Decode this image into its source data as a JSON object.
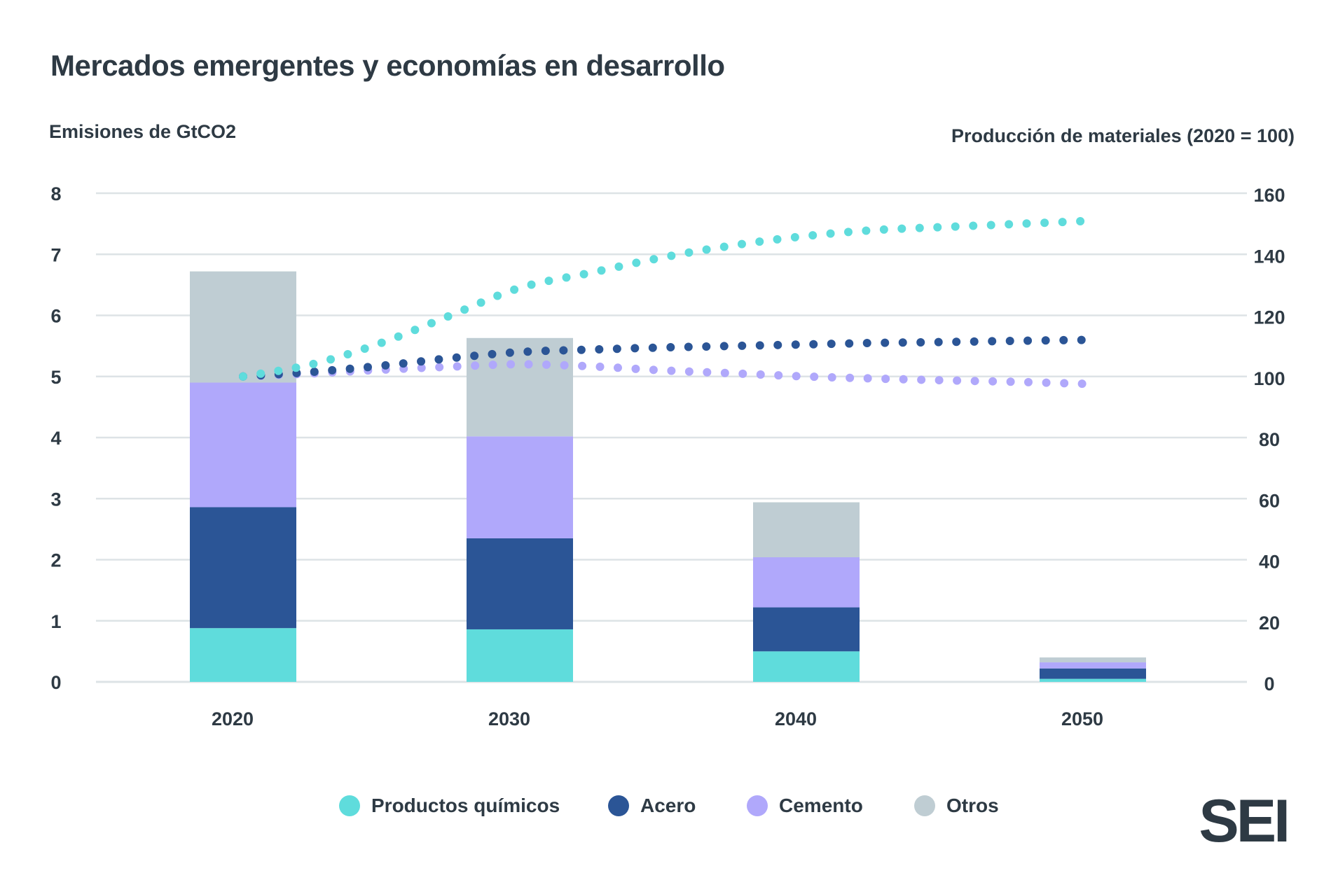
{
  "title": "Mercados emergentes y economías en desarrollo",
  "logo": "SEI",
  "colors": {
    "quimicos": "#5fdcdc",
    "acero": "#2b5596",
    "cemento": "#b0a8fb",
    "otros": "#bfcdd3",
    "grid": "#dde3e6",
    "text": "#2e3a44"
  },
  "chart_data": {
    "type": "bar",
    "stacked": true,
    "title": "Mercados emergentes y economías en desarrollo",
    "ylabel": "Emisiones de GtCO2",
    "ylabel_right": "Producción de materiales (2020 = 100)",
    "categories": [
      "2020",
      "2030",
      "2040",
      "2050"
    ],
    "ylim": [
      0,
      8
    ],
    "ylim_right": [
      0,
      160
    ],
    "y_ticks": [
      "0",
      "1",
      "2",
      "3",
      "4",
      "5",
      "6",
      "7",
      "8"
    ],
    "y_ticks_right": [
      "0",
      "20",
      "40",
      "60",
      "80",
      "100",
      "120",
      "140",
      "160"
    ],
    "grid": true,
    "legend_position": "bottom",
    "series": [
      {
        "name": "Productos químicos",
        "color": "#5fdcdc",
        "values": [
          0.88,
          0.86,
          0.5,
          0.05
        ]
      },
      {
        "name": "Acero",
        "color": "#2b5596",
        "values": [
          1.98,
          1.49,
          0.72,
          0.17
        ]
      },
      {
        "name": "Cemento",
        "color": "#b0a8fb",
        "values": [
          2.04,
          1.67,
          0.82,
          0.1
        ]
      },
      {
        "name": "Otros",
        "color": "#bfcdd3",
        "values": [
          1.82,
          1.61,
          0.9,
          0.08
        ]
      }
    ],
    "lines": [
      {
        "series": "Productos químicos",
        "color": "#5fdcdc",
        "style": "dotted",
        "x": [
          2020,
          2022.5,
          2025,
          2027.5,
          2030,
          2032.5,
          2035,
          2037.5,
          2040,
          2042.5,
          2045,
          2047.5,
          2050
        ],
        "values": [
          100,
          104,
          111,
          120,
          129,
          134,
          139,
          143,
          146,
          148,
          149,
          150,
          151
        ]
      },
      {
        "series": "Acero",
        "color": "#2b5596",
        "style": "dotted",
        "x": [
          2020,
          2022.5,
          2025,
          2027.5,
          2030,
          2032.5,
          2035,
          2037.5,
          2040,
          2042.5,
          2045,
          2047.5,
          2050
        ],
        "values": [
          100,
          101.5,
          103.5,
          106,
          108,
          108.8,
          109.5,
          110,
          110.5,
          111,
          111.3,
          111.7,
          112
        ]
      },
      {
        "series": "Cemento",
        "color": "#b0a8fb",
        "style": "dotted",
        "x": [
          2020,
          2022.5,
          2025,
          2027.5,
          2030,
          2032.5,
          2035,
          2037.5,
          2040,
          2042.5,
          2045,
          2047.5,
          2050
        ],
        "values": [
          100,
          101,
          102.2,
          103.2,
          104,
          103.3,
          102,
          101,
          100,
          99.3,
          98.7,
          98.2,
          97.5
        ]
      }
    ]
  }
}
